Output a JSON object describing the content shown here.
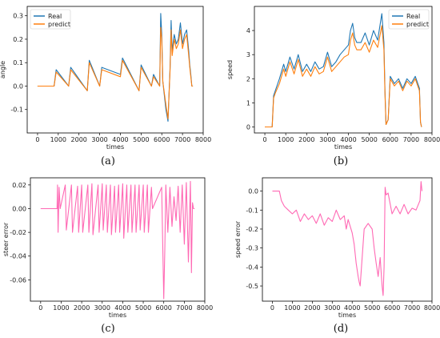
{
  "colors": {
    "real": "#1f77b4",
    "predict": "#ff7f0e",
    "error": "#ff69b4"
  },
  "chart_data": [
    {
      "type": "line",
      "caption": "(a)",
      "xlabel": "times",
      "ylabel": "angle",
      "xlim": [
        -500,
        8000
      ],
      "ylim": [
        -0.2,
        0.34
      ],
      "xticks": [
        0,
        1000,
        2000,
        3000,
        4000,
        5000,
        6000,
        7000,
        8000
      ],
      "yticks": [
        -0.1,
        0.0,
        0.1,
        0.2,
        0.3
      ],
      "ytick_labels": [
        "-0.1",
        "0.0",
        "0.1",
        "0.2",
        "0.3"
      ],
      "legend": {
        "placement": "top-left",
        "entries": [
          "Real",
          "predict"
        ]
      },
      "series": [
        {
          "name": "Real",
          "color": "#1f77b4",
          "x": [
            0,
            800,
            900,
            1500,
            1600,
            2400,
            2500,
            3000,
            3100,
            4000,
            4100,
            4900,
            5000,
            5500,
            5600,
            5900,
            5950,
            6000,
            6050,
            6200,
            6300,
            6400,
            6450,
            6500,
            6600,
            6700,
            6800,
            6900,
            7000,
            7100,
            7200,
            7300,
            7350,
            7400,
            7450,
            7500
          ],
          "y": [
            0,
            0,
            0.07,
            0,
            0.08,
            -0.02,
            0.11,
            0,
            0.08,
            0.05,
            0.12,
            -0.02,
            0.09,
            0,
            0.05,
            0,
            0.31,
            0.22,
            0.02,
            -0.1,
            -0.15,
            0.08,
            0.28,
            0.15,
            0.22,
            0.18,
            0.2,
            0.27,
            0.18,
            0.22,
            0.24,
            0.15,
            0.09,
            0.05,
            0,
            0
          ]
        },
        {
          "name": "predict",
          "color": "#ff7f0e",
          "x": [
            0,
            800,
            900,
            1500,
            1600,
            2400,
            2500,
            3000,
            3100,
            4000,
            4100,
            4900,
            5000,
            5500,
            5600,
            5900,
            5950,
            6000,
            6050,
            6200,
            6300,
            6400,
            6450,
            6500,
            6600,
            6700,
            6800,
            6900,
            7000,
            7100,
            7200,
            7300,
            7350,
            7400,
            7450,
            7500
          ],
          "y": [
            0,
            0,
            0.06,
            0,
            0.07,
            -0.02,
            0.1,
            0,
            0.07,
            0.04,
            0.11,
            -0.02,
            0.08,
            0,
            0.04,
            0,
            0.25,
            0.2,
            0.02,
            -0.08,
            -0.14,
            0.07,
            0.24,
            0.13,
            0.2,
            0.16,
            0.18,
            0.24,
            0.16,
            0.2,
            0.22,
            0.13,
            0.08,
            0.04,
            0,
            0
          ]
        }
      ]
    },
    {
      "type": "line",
      "caption": "(b)",
      "xlabel": "times",
      "ylabel": "speed",
      "xlim": [
        -500,
        8000
      ],
      "ylim": [
        -0.25,
        5.0
      ],
      "xticks": [
        0,
        1000,
        2000,
        3000,
        4000,
        5000,
        6000,
        7000,
        8000
      ],
      "yticks": [
        0,
        1,
        2,
        3,
        4
      ],
      "ytick_labels": [
        "0",
        "1",
        "2",
        "3",
        "4"
      ],
      "legend": {
        "placement": "top-right",
        "entries": [
          "Real",
          "predict"
        ]
      },
      "series": [
        {
          "name": "Real",
          "color": "#1f77b4",
          "x": [
            0,
            350,
            420,
            500,
            700,
            900,
            1000,
            1200,
            1400,
            1600,
            1800,
            2000,
            2200,
            2400,
            2600,
            2800,
            3000,
            3200,
            3400,
            3600,
            3800,
            4000,
            4100,
            4200,
            4300,
            4400,
            4600,
            4800,
            5000,
            5200,
            5400,
            5600,
            5700,
            5750,
            5800,
            5900,
            6000,
            6200,
            6400,
            6600,
            6800,
            7000,
            7200,
            7400,
            7450,
            7500
          ],
          "y": [
            0,
            0,
            1.3,
            1.5,
            2.0,
            2.6,
            2.3,
            2.9,
            2.4,
            3.0,
            2.3,
            2.6,
            2.3,
            2.7,
            2.4,
            2.5,
            3.1,
            2.5,
            2.7,
            3.0,
            3.2,
            3.4,
            4.0,
            4.3,
            3.7,
            3.5,
            3.5,
            3.9,
            3.4,
            4.0,
            3.6,
            4.7,
            3.5,
            1.5,
            0.1,
            0.3,
            2.1,
            1.8,
            2.0,
            1.6,
            2.0,
            1.8,
            2.1,
            1.6,
            0.2,
            0
          ]
        },
        {
          "name": "predict",
          "color": "#ff7f0e",
          "x": [
            0,
            350,
            420,
            500,
            700,
            900,
            1000,
            1200,
            1400,
            1600,
            1800,
            2000,
            2200,
            2400,
            2600,
            2800,
            3000,
            3200,
            3400,
            3600,
            3800,
            4000,
            4100,
            4200,
            4300,
            4400,
            4600,
            4800,
            5000,
            5200,
            5400,
            5600,
            5700,
            5750,
            5800,
            5900,
            6000,
            6200,
            6400,
            6600,
            6800,
            7000,
            7200,
            7400,
            7450,
            7500
          ],
          "y": [
            0,
            0,
            1.2,
            1.4,
            1.8,
            2.4,
            2.1,
            2.7,
            2.2,
            2.8,
            2.1,
            2.4,
            2.1,
            2.5,
            2.2,
            2.3,
            2.9,
            2.3,
            2.5,
            2.7,
            2.9,
            3.0,
            3.6,
            3.9,
            3.4,
            3.2,
            3.2,
            3.5,
            3.1,
            3.6,
            3.3,
            4.2,
            3.2,
            1.4,
            0.1,
            0.3,
            2.0,
            1.7,
            1.9,
            1.5,
            1.9,
            1.7,
            2.0,
            1.5,
            0.2,
            0
          ]
        }
      ]
    },
    {
      "type": "line",
      "caption": "(c)",
      "xlabel": "times",
      "ylabel": "steer error",
      "xlim": [
        -500,
        8000
      ],
      "ylim": [
        -0.078,
        0.026
      ],
      "xticks": [
        0,
        1000,
        2000,
        3000,
        4000,
        5000,
        6000,
        7000,
        8000
      ],
      "yticks": [
        0.02,
        0.0,
        -0.02,
        -0.04,
        -0.06
      ],
      "ytick_labels": [
        "0.02",
        "0.00",
        "-0.02",
        "-0.04",
        "-0.06"
      ],
      "series": [
        {
          "name": "",
          "color": "#ff69b4",
          "x": [
            0,
            800,
            820,
            850,
            900,
            950,
            1200,
            1250,
            1500,
            1550,
            1800,
            1850,
            2000,
            2050,
            2300,
            2350,
            2500,
            2550,
            2800,
            2850,
            3000,
            3050,
            3200,
            3250,
            3400,
            3450,
            3600,
            3650,
            3800,
            3850,
            4000,
            4050,
            4200,
            4250,
            4400,
            4450,
            4600,
            4650,
            4800,
            4850,
            5000,
            5050,
            5200,
            5250,
            5400,
            5450,
            5900,
            5950,
            6000,
            6050,
            6100,
            6200,
            6300,
            6400,
            6500,
            6600,
            6700,
            6800,
            6900,
            7000,
            7100,
            7200,
            7300,
            7350,
            7400,
            7450,
            7500
          ],
          "y": [
            0,
            0,
            0.02,
            -0.02,
            0.018,
            0,
            0.02,
            -0.018,
            0.02,
            -0.02,
            0.019,
            -0.02,
            0.02,
            -0.02,
            0.02,
            -0.02,
            0.021,
            -0.022,
            0.02,
            -0.02,
            0.021,
            -0.018,
            0.02,
            -0.02,
            0.02,
            -0.022,
            0.019,
            -0.02,
            0.02,
            -0.02,
            0.021,
            -0.025,
            0.02,
            -0.02,
            0.02,
            -0.02,
            0.02,
            -0.02,
            0.02,
            -0.018,
            0.02,
            -0.02,
            0.02,
            -0.02,
            0.018,
            0,
            0.018,
            -0.03,
            -0.076,
            -0.035,
            0.02,
            -0.02,
            0.018,
            -0.015,
            0.01,
            -0.01,
            0.019,
            -0.02,
            0.02,
            -0.03,
            0.022,
            -0.045,
            0.023,
            -0.054,
            0.005,
            0,
            0
          ]
        }
      ]
    },
    {
      "type": "line",
      "caption": "(d)",
      "xlabel": "times",
      "ylabel": "speed error",
      "xlim": [
        -500,
        8000
      ],
      "ylim": [
        -0.58,
        0.07
      ],
      "xticks": [
        0,
        1000,
        2000,
        3000,
        4000,
        5000,
        6000,
        7000,
        8000
      ],
      "yticks": [
        0.0,
        -0.1,
        -0.2,
        -0.3,
        -0.4,
        -0.5
      ],
      "ytick_labels": [
        "0.0",
        "-0.1",
        "-0.2",
        "-0.3",
        "-0.4",
        "-0.5"
      ],
      "series": [
        {
          "name": "",
          "color": "#ff69b4",
          "x": [
            0,
            350,
            450,
            600,
            800,
            1000,
            1200,
            1400,
            1600,
            1800,
            2000,
            2200,
            2400,
            2600,
            2800,
            3000,
            3200,
            3400,
            3600,
            3700,
            3800,
            4000,
            4100,
            4200,
            4300,
            4350,
            4400,
            4500,
            4600,
            4800,
            5000,
            5100,
            5200,
            5300,
            5400,
            5500,
            5550,
            5600,
            5650,
            5700,
            5800,
            6000,
            6200,
            6400,
            6600,
            6800,
            7000,
            7200,
            7400,
            7450,
            7500
          ],
          "y": [
            0,
            0,
            -0.05,
            -0.08,
            -0.1,
            -0.12,
            -0.1,
            -0.16,
            -0.12,
            -0.15,
            -0.13,
            -0.17,
            -0.12,
            -0.18,
            -0.14,
            -0.16,
            -0.1,
            -0.15,
            -0.13,
            -0.2,
            -0.15,
            -0.22,
            -0.28,
            -0.38,
            -0.45,
            -0.48,
            -0.5,
            -0.35,
            -0.2,
            -0.17,
            -0.2,
            -0.3,
            -0.38,
            -0.45,
            -0.35,
            -0.5,
            -0.55,
            -0.4,
            0.02,
            -0.02,
            -0.01,
            -0.12,
            -0.08,
            -0.12,
            -0.07,
            -0.12,
            -0.09,
            -0.1,
            -0.05,
            0.05,
            0
          ]
        }
      ]
    }
  ]
}
